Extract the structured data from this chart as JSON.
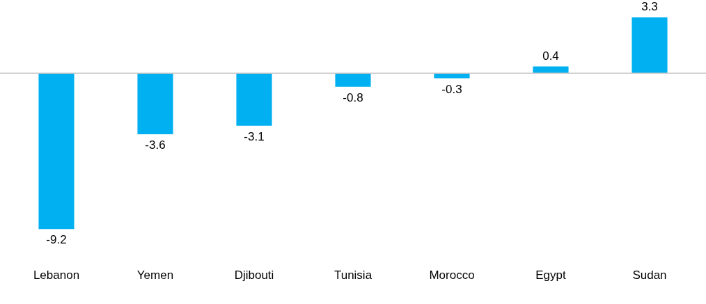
{
  "chart_data": {
    "type": "bar",
    "categories": [
      "Lebanon",
      "Yemen",
      "Djibouti",
      "Tunisia",
      "Morocco",
      "Egypt",
      "Sudan"
    ],
    "values": [
      -9.2,
      -3.6,
      -3.1,
      -0.8,
      -0.3,
      0.4,
      3.3
    ],
    "color": "#00b0f0",
    "data_labels": true,
    "grid": false,
    "legend": false
  }
}
